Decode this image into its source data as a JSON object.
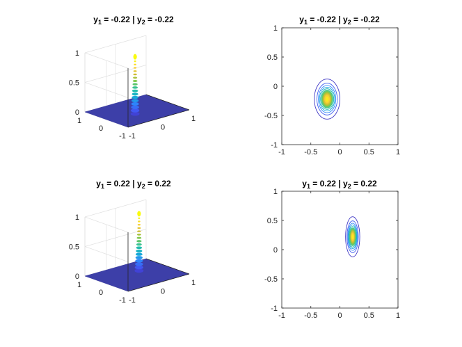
{
  "colors": {
    "floor": "#3d3fa8",
    "colormap": [
      "#3e26a8",
      "#4352f0",
      "#2d85fb",
      "#13aed4",
      "#2ac2a1",
      "#7ac94f",
      "#d1bb2f",
      "#fcd336",
      "#f9fb0e"
    ]
  },
  "chart_data": [
    {
      "type": "surface",
      "title": {
        "prefix": "y",
        "sub1": "1",
        "mid": " = -0.22 | y",
        "sub2": "2",
        "suffix": " = -0.22"
      },
      "peak": {
        "x": -0.22,
        "y": -0.22,
        "z": 1.0
      },
      "xlim": [
        -1,
        1
      ],
      "ylim": [
        -1,
        1
      ],
      "zlim": [
        0,
        1
      ],
      "xticks": [
        "-1",
        "0",
        "1"
      ],
      "yticks": [
        "-1",
        "0",
        "1"
      ],
      "zticks": [
        "0",
        "0.5",
        "1"
      ],
      "grid": true
    },
    {
      "type": "contour",
      "title": {
        "prefix": "y",
        "sub1": "1",
        "mid": " = -0.22 | y",
        "sub2": "2",
        "suffix": " = -0.22"
      },
      "center": {
        "x": -0.22,
        "y": -0.22
      },
      "spread": {
        "x": 0.09,
        "y": 0.14
      },
      "levels": 10,
      "xlim": [
        -1,
        1
      ],
      "ylim": [
        -1,
        1
      ],
      "xticks": [
        "-1",
        "-0.5",
        "0",
        "0.5",
        "1"
      ],
      "yticks": [
        "-1",
        "-0.5",
        "0",
        "0.5",
        "1"
      ]
    },
    {
      "type": "surface",
      "title": {
        "prefix": "y",
        "sub1": "1",
        "mid": " = 0.22 | y",
        "sub2": "2",
        "suffix": " = 0.22"
      },
      "peak": {
        "x": 0.22,
        "y": 0.22,
        "z": 1.0
      },
      "xlim": [
        -1,
        1
      ],
      "ylim": [
        -1,
        1
      ],
      "zlim": [
        0,
        1
      ],
      "xticks": [
        "-1",
        "0",
        "1"
      ],
      "yticks": [
        "-1",
        "0",
        "1"
      ],
      "zticks": [
        "0",
        "0.5",
        "1"
      ],
      "grid": true
    },
    {
      "type": "contour",
      "title": {
        "prefix": "y",
        "sub1": "1",
        "mid": " = 0.22 | y",
        "sub2": "2",
        "suffix": " = 0.22"
      },
      "center": {
        "x": 0.22,
        "y": 0.22
      },
      "spread": {
        "x": 0.05,
        "y": 0.14
      },
      "levels": 10,
      "xlim": [
        -1,
        1
      ],
      "ylim": [
        -1,
        1
      ],
      "xticks": [
        "-1",
        "-0.5",
        "0",
        "0.5",
        "1"
      ],
      "yticks": [
        "-1",
        "-0.5",
        "0",
        "0.5",
        "1"
      ]
    }
  ]
}
